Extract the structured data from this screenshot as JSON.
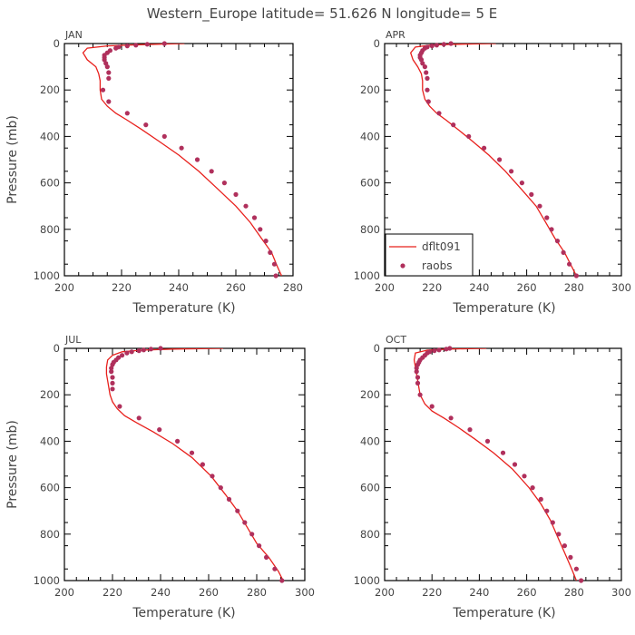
{
  "title": "Western_Europe  latitude= 51.626 N longitude= 5 E",
  "colors": {
    "model_line": "#e8201c",
    "obs_dots": "#b0305c",
    "axes": "#000000",
    "text": "#444444"
  },
  "legend": {
    "model_label": "dflt091",
    "obs_label": "raobs",
    "panel": "APR",
    "placement": "bottom-left"
  },
  "chart_data": [
    {
      "type": "line",
      "panel": "JAN",
      "xlabel": "Temperature (K)",
      "ylabel": "Pressure (mb)",
      "xlim": [
        200,
        280
      ],
      "ylim": [
        1000,
        0
      ],
      "xticks": [
        200,
        220,
        240,
        260,
        280
      ],
      "yticks": [
        0,
        200,
        400,
        600,
        800,
        1000
      ],
      "series": [
        {
          "name": "dflt091",
          "kind": "line",
          "x": [
            242,
            226,
            215,
            208,
            206.5,
            208,
            211,
            212,
            212.5,
            212.5,
            213,
            215,
            218,
            222,
            227,
            233,
            240,
            247,
            254,
            260,
            265,
            269,
            272.5,
            274.5,
            276
          ],
          "y": [
            0,
            5,
            10,
            20,
            40,
            70,
            100,
            130,
            160,
            200,
            240,
            270,
            300,
            330,
            370,
            420,
            480,
            550,
            630,
            700,
            770,
            840,
            900,
            960,
            1000
          ]
        },
        {
          "name": "raobs",
          "kind": "scatter",
          "x": [
            235,
            229,
            225,
            222,
            219,
            218,
            216,
            215,
            214,
            214,
            214,
            214.5,
            215,
            215.5,
            215.5,
            213.5,
            215.5,
            222,
            228.5,
            235,
            241,
            246.5,
            251.5,
            256,
            260,
            263.5,
            266.5,
            268.5,
            270.5,
            272,
            273.5,
            274
          ],
          "y": [
            0,
            3,
            7,
            10,
            15,
            20,
            30,
            40,
            50,
            60,
            70,
            85,
            100,
            125,
            150,
            200,
            250,
            300,
            350,
            400,
            450,
            500,
            550,
            600,
            650,
            700,
            750,
            800,
            850,
            900,
            950,
            1000
          ]
        }
      ]
    },
    {
      "type": "line",
      "panel": "APR",
      "xlabel": "Temperature (K)",
      "ylabel": "",
      "xlim": [
        200,
        300
      ],
      "ylim": [
        1000,
        0
      ],
      "xticks": [
        200,
        220,
        240,
        260,
        280,
        300
      ],
      "yticks": [
        0,
        200,
        400,
        600,
        800,
        1000
      ],
      "series": [
        {
          "name": "dflt091",
          "kind": "line",
          "x": [
            247,
            230,
            220,
            213,
            211,
            212,
            214,
            215.5,
            216,
            216,
            217,
            219,
            222,
            226,
            231,
            237,
            244,
            251,
            258,
            264,
            268,
            272,
            276,
            279,
            281
          ],
          "y": [
            0,
            3,
            6,
            15,
            40,
            70,
            100,
            130,
            160,
            200,
            240,
            270,
            300,
            330,
            370,
            420,
            480,
            550,
            630,
            700,
            770,
            840,
            900,
            960,
            1000
          ]
        },
        {
          "name": "raobs",
          "kind": "scatter",
          "x": [
            228,
            225,
            222,
            220,
            218,
            217,
            216,
            215.5,
            215,
            215,
            215.5,
            216,
            217,
            217.5,
            218,
            218,
            218.5,
            223,
            229,
            235.5,
            242,
            248.5,
            253.5,
            258,
            262,
            265.5,
            268.5,
            270.5,
            273,
            275.5,
            278,
            281
          ],
          "y": [
            0,
            3,
            7,
            10,
            15,
            20,
            30,
            40,
            50,
            60,
            70,
            85,
            100,
            125,
            150,
            200,
            250,
            300,
            350,
            400,
            450,
            500,
            550,
            600,
            650,
            700,
            750,
            800,
            850,
            900,
            950,
            1000
          ]
        }
      ]
    },
    {
      "type": "line",
      "panel": "JUL",
      "xlabel": "Temperature (K)",
      "ylabel": "Pressure (mb)",
      "xlim": [
        200,
        300
      ],
      "ylim": [
        1000,
        0
      ],
      "xticks": [
        200,
        220,
        240,
        260,
        280,
        300
      ],
      "yticks": [
        0,
        200,
        400,
        600,
        800,
        1000
      ],
      "series": [
        {
          "name": "dflt091",
          "kind": "line",
          "x": [
            266,
            245,
            232,
            224,
            220,
            218,
            217.5,
            217.5,
            218,
            218.5,
            219,
            220,
            222,
            225,
            230,
            237,
            245,
            253,
            261,
            267,
            272,
            276,
            280,
            285,
            289,
            291
          ],
          "y": [
            0,
            3,
            8,
            15,
            30,
            50,
            80,
            110,
            140,
            170,
            200,
            230,
            260,
            290,
            320,
            360,
            410,
            470,
            550,
            630,
            700,
            770,
            840,
            900,
            960,
            1000
          ]
        },
        {
          "name": "raobs",
          "kind": "scatter",
          "x": [
            240,
            236,
            233,
            231,
            228,
            226,
            224,
            222.5,
            221.5,
            220.5,
            220,
            219.5,
            219.5,
            220,
            220,
            220,
            223,
            231,
            239.5,
            247,
            253,
            257.5,
            261.5,
            265,
            268.5,
            272,
            275,
            278,
            281,
            284,
            287.5,
            290.5
          ],
          "y": [
            0,
            3,
            7,
            10,
            15,
            20,
            30,
            40,
            50,
            60,
            70,
            85,
            100,
            125,
            150,
            175,
            250,
            300,
            350,
            400,
            450,
            500,
            550,
            600,
            650,
            700,
            750,
            800,
            850,
            900,
            950,
            1000
          ]
        }
      ]
    },
    {
      "type": "line",
      "panel": "OCT",
      "xlabel": "Temperature (K)",
      "ylabel": "",
      "xlim": [
        200,
        300
      ],
      "ylim": [
        1000,
        0
      ],
      "xticks": [
        200,
        220,
        240,
        260,
        280,
        300
      ],
      "yticks": [
        0,
        200,
        400,
        600,
        800,
        1000
      ],
      "series": [
        {
          "name": "dflt091",
          "kind": "line",
          "x": [
            243,
            227,
            218,
            213,
            212.5,
            213,
            213.5,
            214,
            214.5,
            215,
            217,
            220,
            225,
            231,
            238,
            246,
            254,
            261,
            266,
            270,
            273,
            276,
            279,
            281
          ],
          "y": [
            0,
            3,
            8,
            20,
            50,
            80,
            110,
            140,
            170,
            200,
            240,
            270,
            300,
            340,
            390,
            450,
            520,
            600,
            670,
            740,
            810,
            880,
            950,
            1000
          ]
        },
        {
          "name": "raobs",
          "kind": "scatter",
          "x": [
            227.5,
            226,
            223,
            221,
            219,
            218,
            217,
            216,
            215,
            214.5,
            214,
            213.5,
            213.5,
            214,
            214,
            215,
            220,
            228,
            236,
            243.5,
            250,
            255,
            259,
            262.5,
            266,
            268.5,
            271,
            273.5,
            276,
            278.5,
            281,
            283
          ],
          "y": [
            0,
            3,
            7,
            10,
            15,
            20,
            30,
            40,
            50,
            60,
            70,
            85,
            100,
            125,
            150,
            200,
            250,
            300,
            350,
            400,
            450,
            500,
            550,
            600,
            650,
            700,
            750,
            800,
            850,
            900,
            950,
            1000
          ]
        }
      ]
    }
  ]
}
